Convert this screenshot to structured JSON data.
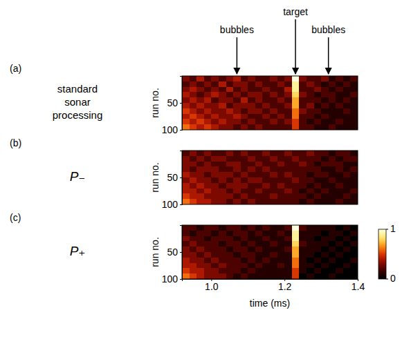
{
  "chart_data": [
    {
      "type": "heatmap",
      "panel": "(a)",
      "title": "standard sonar processing",
      "ylabel": "run no.",
      "xlim": [
        0.92,
        1.4
      ],
      "ylim": [
        0,
        100
      ],
      "yticks": [
        50,
        100
      ],
      "tick_labels": "y",
      "annotations": [
        {
          "text": "bubbles",
          "x": 1.07
        },
        {
          "text": "target",
          "x": 1.23
        },
        {
          "text": "bubbles",
          "x": 1.32
        }
      ],
      "x_bins": [
        0.92,
        0.94,
        0.96,
        0.98,
        1.0,
        1.02,
        1.04,
        1.06,
        1.08,
        1.1,
        1.12,
        1.14,
        1.16,
        1.18,
        1.2,
        1.22,
        1.24,
        1.26,
        1.28,
        1.3,
        1.32,
        1.34,
        1.36,
        1.38,
        1.4
      ],
      "y_bins": [
        0,
        10,
        20,
        30,
        40,
        50,
        60,
        70,
        80,
        90,
        100
      ],
      "cells": [
        [
          0.3,
          0.2,
          0.4,
          0.2,
          0.3,
          0.2,
          0.3,
          0.4,
          0.2,
          0.3,
          0.2,
          0.2,
          0.3,
          0.2,
          0.3,
          1.0,
          0.3,
          0.2,
          0.2,
          0.3,
          0.1,
          0.2,
          0.1,
          0.2
        ],
        [
          0.2,
          0.3,
          0.2,
          0.3,
          0.2,
          0.4,
          0.2,
          0.3,
          0.3,
          0.2,
          0.3,
          0.2,
          0.2,
          0.3,
          0.2,
          0.9,
          0.2,
          0.3,
          0.2,
          0.1,
          0.2,
          0.1,
          0.2,
          0.1
        ],
        [
          0.3,
          0.4,
          0.3,
          0.2,
          0.3,
          0.2,
          0.4,
          0.2,
          0.3,
          0.2,
          0.2,
          0.3,
          0.2,
          0.2,
          0.4,
          0.9,
          0.2,
          0.2,
          0.3,
          0.2,
          0.1,
          0.2,
          0.1,
          0.1
        ],
        [
          0.4,
          0.3,
          0.2,
          0.3,
          0.4,
          0.3,
          0.2,
          0.3,
          0.2,
          0.3,
          0.3,
          0.2,
          0.3,
          0.2,
          0.3,
          0.8,
          0.3,
          0.2,
          0.1,
          0.2,
          0.2,
          0.1,
          0.1,
          0.2
        ],
        [
          0.3,
          0.4,
          0.3,
          0.4,
          0.2,
          0.3,
          0.3,
          0.2,
          0.4,
          0.2,
          0.3,
          0.2,
          0.2,
          0.3,
          0.2,
          0.7,
          0.2,
          0.2,
          0.2,
          0.1,
          0.2,
          0.1,
          0.2,
          0.1
        ],
        [
          0.4,
          0.3,
          0.4,
          0.3,
          0.3,
          0.4,
          0.2,
          0.3,
          0.3,
          0.3,
          0.2,
          0.3,
          0.2,
          0.2,
          0.3,
          0.7,
          0.2,
          0.3,
          0.1,
          0.2,
          0.1,
          0.2,
          0.1,
          0.1
        ],
        [
          0.5,
          0.4,
          0.3,
          0.4,
          0.3,
          0.3,
          0.4,
          0.3,
          0.2,
          0.3,
          0.3,
          0.2,
          0.3,
          0.2,
          0.2,
          0.6,
          0.3,
          0.2,
          0.2,
          0.1,
          0.1,
          0.1,
          0.2,
          0.1
        ],
        [
          0.4,
          0.5,
          0.4,
          0.3,
          0.4,
          0.3,
          0.3,
          0.4,
          0.3,
          0.2,
          0.2,
          0.3,
          0.2,
          0.3,
          0.2,
          0.6,
          0.2,
          0.2,
          0.1,
          0.2,
          0.1,
          0.1,
          0.1,
          0.1
        ],
        [
          0.5,
          0.4,
          0.5,
          0.4,
          0.3,
          0.4,
          0.3,
          0.3,
          0.2,
          0.3,
          0.2,
          0.2,
          0.3,
          0.2,
          0.3,
          0.5,
          0.2,
          0.1,
          0.2,
          0.1,
          0.1,
          0.2,
          0.1,
          0.1
        ],
        [
          0.6,
          0.5,
          0.4,
          0.5,
          0.4,
          0.3,
          0.3,
          0.2,
          0.3,
          0.2,
          0.3,
          0.2,
          0.2,
          0.2,
          0.2,
          0.5,
          0.2,
          0.2,
          0.1,
          0.1,
          0.2,
          0.1,
          0.1,
          0.1
        ]
      ]
    },
    {
      "type": "heatmap",
      "panel": "(b)",
      "title": "P₋",
      "ylabel": "run no.",
      "xlim": [
        0.92,
        1.4
      ],
      "ylim": [
        0,
        100
      ],
      "yticks": [
        50,
        100
      ],
      "tick_labels": "y",
      "x_bins": [
        0.92,
        0.94,
        0.96,
        0.98,
        1.0,
        1.02,
        1.04,
        1.06,
        1.08,
        1.1,
        1.12,
        1.14,
        1.16,
        1.18,
        1.2,
        1.22,
        1.24,
        1.26,
        1.28,
        1.3,
        1.32,
        1.34,
        1.36,
        1.38,
        1.4
      ],
      "y_bins": [
        0,
        10,
        20,
        30,
        40,
        50,
        60,
        70,
        80,
        90,
        100
      ],
      "cells": [
        [
          0.2,
          0.3,
          0.2,
          0.3,
          0.2,
          0.2,
          0.3,
          0.2,
          0.3,
          0.2,
          0.2,
          0.3,
          0.2,
          0.2,
          0.3,
          0.2,
          0.2,
          0.3,
          0.2,
          0.2,
          0.1,
          0.2,
          0.2,
          0.1
        ],
        [
          0.3,
          0.2,
          0.3,
          0.2,
          0.3,
          0.3,
          0.2,
          0.2,
          0.2,
          0.3,
          0.2,
          0.2,
          0.3,
          0.2,
          0.2,
          0.3,
          0.2,
          0.2,
          0.2,
          0.1,
          0.2,
          0.1,
          0.2,
          0.2
        ],
        [
          0.3,
          0.3,
          0.2,
          0.3,
          0.2,
          0.2,
          0.3,
          0.3,
          0.2,
          0.2,
          0.3,
          0.2,
          0.2,
          0.3,
          0.2,
          0.2,
          0.3,
          0.2,
          0.1,
          0.2,
          0.2,
          0.2,
          0.1,
          0.1
        ],
        [
          0.3,
          0.2,
          0.3,
          0.3,
          0.3,
          0.2,
          0.2,
          0.3,
          0.2,
          0.3,
          0.2,
          0.3,
          0.2,
          0.2,
          0.2,
          0.2,
          0.2,
          0.2,
          0.2,
          0.1,
          0.1,
          0.2,
          0.1,
          0.2
        ],
        [
          0.4,
          0.3,
          0.3,
          0.2,
          0.3,
          0.3,
          0.3,
          0.2,
          0.3,
          0.2,
          0.2,
          0.2,
          0.3,
          0.2,
          0.3,
          0.2,
          0.2,
          0.1,
          0.2,
          0.2,
          0.1,
          0.1,
          0.2,
          0.1
        ],
        [
          0.3,
          0.4,
          0.3,
          0.3,
          0.2,
          0.3,
          0.2,
          0.3,
          0.2,
          0.3,
          0.3,
          0.2,
          0.2,
          0.2,
          0.2,
          0.3,
          0.2,
          0.2,
          0.1,
          0.1,
          0.2,
          0.1,
          0.1,
          0.1
        ],
        [
          0.4,
          0.3,
          0.4,
          0.3,
          0.3,
          0.2,
          0.3,
          0.3,
          0.3,
          0.2,
          0.2,
          0.3,
          0.2,
          0.3,
          0.2,
          0.2,
          0.2,
          0.1,
          0.2,
          0.1,
          0.1,
          0.2,
          0.1,
          0.1
        ],
        [
          0.4,
          0.4,
          0.3,
          0.4,
          0.3,
          0.3,
          0.2,
          0.3,
          0.2,
          0.2,
          0.3,
          0.2,
          0.2,
          0.2,
          0.3,
          0.2,
          0.1,
          0.2,
          0.1,
          0.2,
          0.1,
          0.1,
          0.1,
          0.2
        ],
        [
          0.5,
          0.4,
          0.4,
          0.3,
          0.3,
          0.3,
          0.3,
          0.2,
          0.3,
          0.2,
          0.2,
          0.2,
          0.3,
          0.2,
          0.2,
          0.2,
          0.2,
          0.1,
          0.2,
          0.1,
          0.1,
          0.1,
          0.2,
          0.1
        ],
        [
          0.6,
          0.5,
          0.4,
          0.4,
          0.3,
          0.3,
          0.2,
          0.3,
          0.2,
          0.3,
          0.2,
          0.2,
          0.2,
          0.2,
          0.2,
          0.2,
          0.1,
          0.2,
          0.1,
          0.1,
          0.1,
          0.2,
          0.1,
          0.1
        ]
      ]
    },
    {
      "type": "heatmap",
      "panel": "(c)",
      "title": "P₊",
      "ylabel": "run no.",
      "xlabel": "time (ms)",
      "xlim": [
        0.92,
        1.4
      ],
      "ylim": [
        0,
        100
      ],
      "xticks": [
        {
          "value": 1,
          "label": "1.0"
        },
        1.2,
        1.4
      ],
      "yticks": [
        50,
        100
      ],
      "x_bins": [
        0.92,
        0.94,
        0.96,
        0.98,
        1.0,
        1.02,
        1.04,
        1.06,
        1.08,
        1.1,
        1.12,
        1.14,
        1.16,
        1.18,
        1.2,
        1.22,
        1.24,
        1.26,
        1.28,
        1.3,
        1.32,
        1.34,
        1.36,
        1.38,
        1.4
      ],
      "y_bins": [
        0,
        10,
        20,
        30,
        40,
        50,
        60,
        70,
        80,
        90,
        100
      ],
      "cells": [
        [
          0.2,
          0.2,
          0.1,
          0.2,
          0.2,
          0.1,
          0.2,
          0.2,
          0.1,
          0.2,
          0.1,
          0.2,
          0.1,
          0.1,
          0.2,
          1.0,
          0.2,
          0.1,
          0.1,
          0.1,
          0.1,
          0.0,
          0.1,
          0.0
        ],
        [
          0.2,
          0.1,
          0.2,
          0.2,
          0.1,
          0.2,
          0.1,
          0.2,
          0.2,
          0.1,
          0.2,
          0.1,
          0.1,
          0.2,
          0.1,
          0.9,
          0.1,
          0.1,
          0.1,
          0.0,
          0.1,
          0.1,
          0.0,
          0.1
        ],
        [
          0.3,
          0.2,
          0.2,
          0.1,
          0.2,
          0.2,
          0.2,
          0.1,
          0.2,
          0.1,
          0.1,
          0.2,
          0.1,
          0.1,
          0.2,
          0.9,
          0.1,
          0.1,
          0.0,
          0.1,
          0.1,
          0.0,
          0.1,
          0.0
        ],
        [
          0.2,
          0.3,
          0.2,
          0.2,
          0.2,
          0.1,
          0.2,
          0.2,
          0.1,
          0.2,
          0.1,
          0.1,
          0.2,
          0.1,
          0.1,
          0.8,
          0.2,
          0.1,
          0.1,
          0.1,
          0.0,
          0.1,
          0.0,
          0.1
        ],
        [
          0.3,
          0.2,
          0.3,
          0.2,
          0.2,
          0.2,
          0.1,
          0.2,
          0.2,
          0.1,
          0.2,
          0.1,
          0.1,
          0.1,
          0.2,
          0.7,
          0.1,
          0.1,
          0.1,
          0.0,
          0.1,
          0.0,
          0.1,
          0.0
        ],
        [
          0.3,
          0.3,
          0.2,
          0.3,
          0.2,
          0.2,
          0.2,
          0.1,
          0.2,
          0.2,
          0.1,
          0.1,
          0.2,
          0.1,
          0.1,
          0.7,
          0.1,
          0.1,
          0.0,
          0.1,
          0.0,
          0.1,
          0.0,
          0.0
        ],
        [
          0.4,
          0.3,
          0.3,
          0.2,
          0.3,
          0.2,
          0.2,
          0.2,
          0.1,
          0.2,
          0.1,
          0.2,
          0.1,
          0.1,
          0.1,
          0.6,
          0.1,
          0.0,
          0.1,
          0.0,
          0.1,
          0.0,
          0.0,
          0.1
        ],
        [
          0.4,
          0.4,
          0.3,
          0.3,
          0.2,
          0.3,
          0.2,
          0.2,
          0.2,
          0.1,
          0.2,
          0.1,
          0.1,
          0.2,
          0.1,
          0.6,
          0.1,
          0.1,
          0.0,
          0.1,
          0.0,
          0.0,
          0.1,
          0.0
        ],
        [
          0.5,
          0.4,
          0.4,
          0.3,
          0.3,
          0.2,
          0.2,
          0.2,
          0.1,
          0.2,
          0.1,
          0.1,
          0.1,
          0.1,
          0.1,
          0.5,
          0.1,
          0.0,
          0.1,
          0.0,
          0.0,
          0.1,
          0.0,
          0.0
        ],
        [
          0.6,
          0.5,
          0.4,
          0.3,
          0.3,
          0.3,
          0.2,
          0.1,
          0.2,
          0.1,
          0.1,
          0.1,
          0.1,
          0.1,
          0.1,
          0.5,
          0.0,
          0.1,
          0.0,
          0.0,
          0.1,
          0.0,
          0.0,
          0.0
        ]
      ],
      "colorbar_range": [
        0,
        1
      ],
      "colorbar_ticks": [
        0,
        1
      ]
    }
  ]
}
